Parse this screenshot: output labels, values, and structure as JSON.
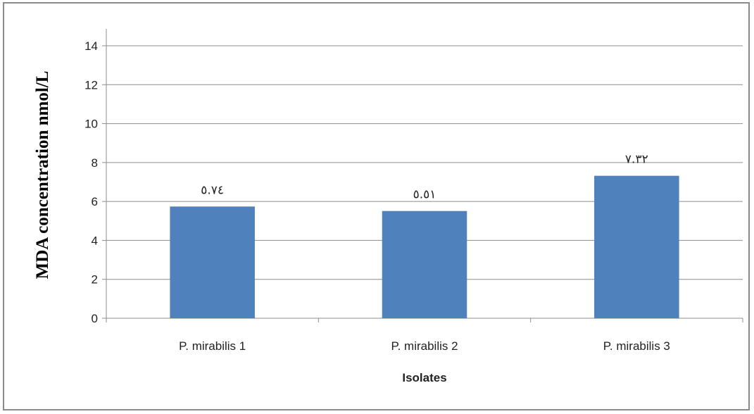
{
  "chart_data": {
    "type": "bar",
    "categories": [
      "P. mirabilis 1",
      "P. mirabilis 2",
      "P. mirabilis 3"
    ],
    "values": [
      5.74,
      5.51,
      7.32
    ],
    "data_labels": [
      "٥.٧٤",
      "٥.٥١",
      "٧.٣٢"
    ],
    "title": "",
    "xlabel": "Isolates",
    "ylabel": "MDA concentration nmol/L",
    "ylim": [
      0,
      14
    ],
    "yticks": [
      0,
      2,
      4,
      6,
      8,
      10,
      12,
      14
    ],
    "grid": true,
    "legend": "none",
    "colors": {
      "bar": "#4f81bd",
      "grid": "#8c8c8c",
      "axis": "#8c8c8c"
    }
  }
}
